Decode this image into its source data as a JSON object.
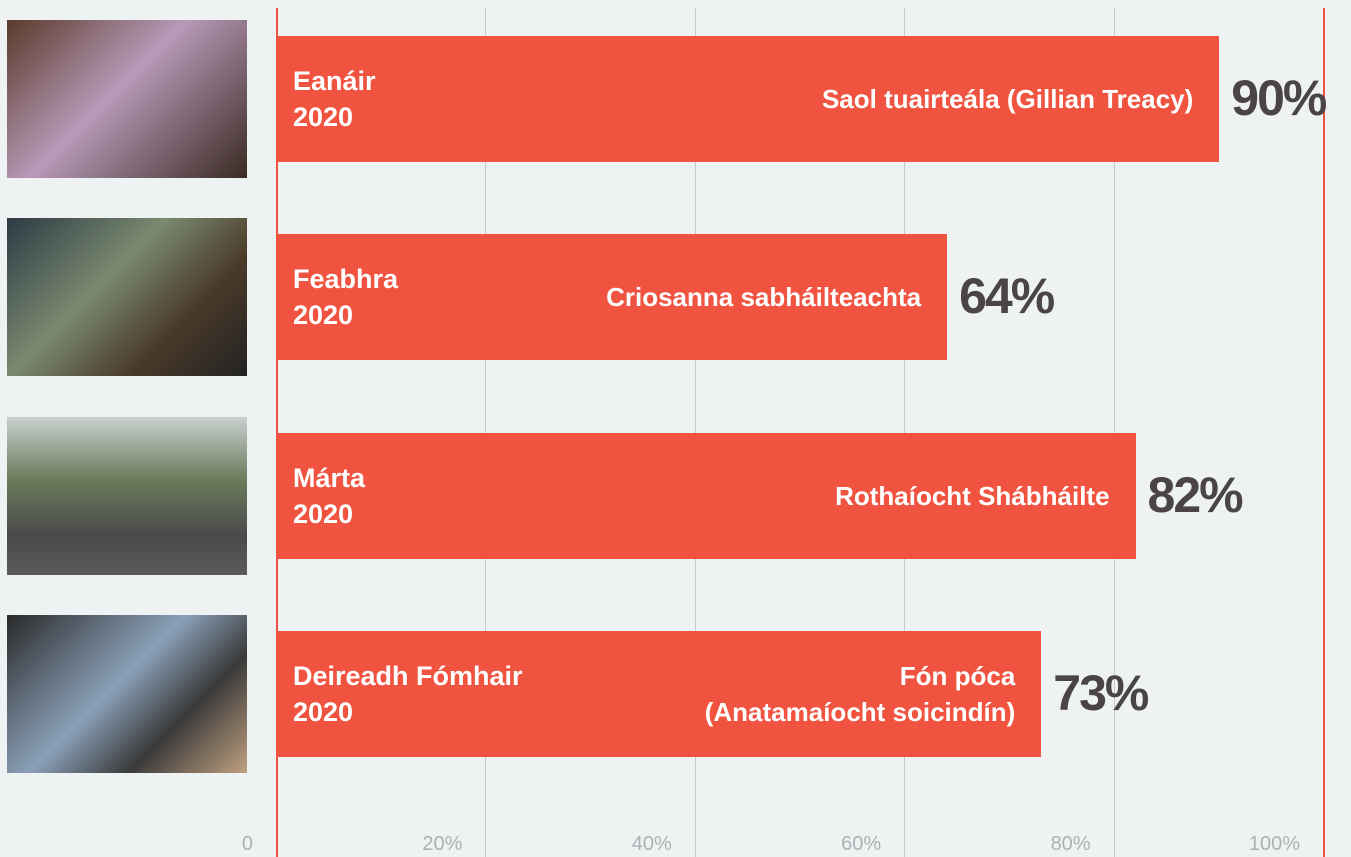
{
  "chart_data": {
    "type": "bar",
    "orientation": "horizontal",
    "categories": [
      "Eanáir\n2020",
      "Feabhra\n2020",
      "Márta\n2020",
      "Deireadh Fómhair\n2020"
    ],
    "campaigns": [
      "Saol tuairteála (Gillian Treacy)",
      "Criosanna sabháilteachta",
      "Rothaíocht Shábháilte",
      "Fón póca\n(Anatamaíocht soicindín)"
    ],
    "values": [
      90,
      64,
      82,
      73
    ],
    "value_labels": [
      "90%",
      "64%",
      "82%",
      "73%"
    ],
    "color": "#f0533f",
    "xlim": [
      0,
      100
    ],
    "xticks": [
      0,
      {
        "value": 20,
        "label": "20%"
      },
      {
        "value": 40,
        "label": "40%"
      },
      {
        "value": 60,
        "label": "60%"
      },
      {
        "value": 80,
        "label": "80%"
      },
      {
        "value": 100,
        "label": "100%"
      }
    ],
    "grid": true,
    "grid_color": "#c9c9c9",
    "edge_line_color": "#e8533f"
  }
}
